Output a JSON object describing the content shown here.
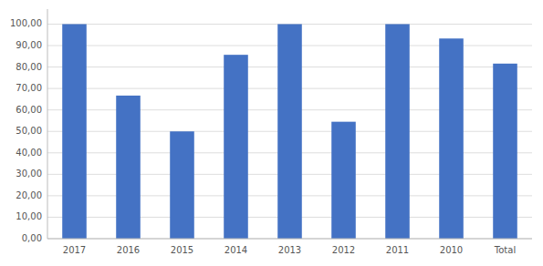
{
  "chart_data": {
    "type": "bar",
    "categories": [
      "2017",
      "2016",
      "2015",
      "2014",
      "2013",
      "2012",
      "2011",
      "2010",
      "Total"
    ],
    "values": [
      100.0,
      66.7,
      50.0,
      85.7,
      100.0,
      54.5,
      100.0,
      93.3,
      81.6
    ],
    "color": "#4472C4",
    "ylim": [
      0,
      107
    ],
    "yticks": [
      {
        "value": 0,
        "label": "0,00"
      },
      {
        "value": 10,
        "label": "10,00"
      },
      {
        "value": 20,
        "label": "20,00"
      },
      {
        "value": 30,
        "label": "30,00"
      },
      {
        "value": 40,
        "label": "40,00"
      },
      {
        "value": 50,
        "label": "50,00"
      },
      {
        "value": 60,
        "label": "60,00"
      },
      {
        "value": 70,
        "label": "70,00"
      },
      {
        "value": 80,
        "label": "80,00"
      },
      {
        "value": 90,
        "label": "90,00"
      },
      {
        "value": 100,
        "label": "100,00"
      }
    ],
    "grid": true
  }
}
